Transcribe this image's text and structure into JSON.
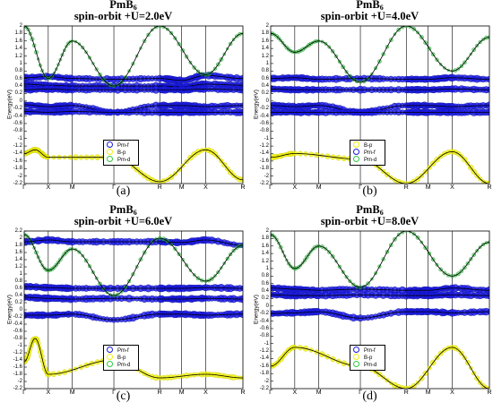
{
  "colors": {
    "f": "#1a1ae6",
    "p": "#f2f20a",
    "d": "#2ecc40",
    "line": "#000000",
    "axes": "#000000",
    "bg": "#ffffff"
  },
  "panels": [
    {
      "title": "PmB",
      "title_sub": "6",
      "subtitle": "spin-orbit +U=2.0eV",
      "caption": "(a)",
      "ylabel": "Energy(eV)",
      "yticks": [
        "2",
        "1.8",
        "1.6",
        "1.4",
        "1.2",
        "1",
        "0.8",
        "0.6",
        "0.4",
        "0.2",
        "0",
        "-0.2",
        "-0.4",
        "-0.6",
        "-0.8",
        "-1",
        "-1.2",
        "-1.4",
        "-1.6",
        "-1.8",
        "-2",
        "-2.2"
      ],
      "xticks": [
        "Γ",
        "X",
        "M",
        "Γ",
        "R",
        "M",
        "X",
        "R"
      ],
      "legend": [
        "Pm-f",
        "B-p",
        "Pm-d"
      ]
    },
    {
      "title": "PmB",
      "title_sub": "6",
      "subtitle": "spin-orbit +U=4.0eV",
      "caption": "(b)",
      "ylabel": "Energy(eV)",
      "yticks": [
        "2",
        "1.8",
        "1.6",
        "1.4",
        "1.2",
        "1",
        "0.8",
        "0.6",
        "0.4",
        "0.2",
        "0",
        "-0.2",
        "-0.4",
        "-0.6",
        "-0.8",
        "-1",
        "-1.2",
        "-1.4",
        "-1.6",
        "-1.8",
        "-2",
        "-2.2"
      ],
      "xticks": [
        "Γ",
        "X",
        "M",
        "Γ",
        "R",
        "M",
        "X",
        "R"
      ],
      "legend": [
        "B-p",
        "Pm-f",
        "Pm-d"
      ]
    },
    {
      "title": "PmB",
      "title_sub": "6",
      "subtitle": "spin-orbit +U=6.0eV",
      "caption": "(c)",
      "ylabel": "Energy(eV)",
      "yticks": [
        "2.2",
        "2",
        "1.8",
        "1.6",
        "1.4",
        "1.2",
        "1",
        "0.8",
        "0.6",
        "0.4",
        "0.2",
        "0",
        "-0.2",
        "-0.4",
        "-0.6",
        "-0.8",
        "-1",
        "-1.2",
        "-1.4",
        "-1.6",
        "-1.8",
        "-2",
        "-2.2"
      ],
      "xticks": [
        "Γ",
        "X",
        "M",
        "Γ",
        "R",
        "M",
        "X",
        "R"
      ],
      "legend": [
        "Pm-f",
        "B-p",
        "Pm-d"
      ]
    },
    {
      "title": "PmB",
      "title_sub": "6",
      "subtitle": "spin-orbit +U=8.0eV",
      "caption": "(d)",
      "ylabel": "Energy(eV)",
      "yticks": [
        "2",
        "1.8",
        "1.6",
        "1.4",
        "1.2",
        "1",
        "0.8",
        "0.6",
        "0.4",
        "0.2",
        "0",
        "-0.2",
        "-0.4",
        "-0.6",
        "-0.8",
        "-1",
        "-1.2",
        "-1.4",
        "-1.6",
        "-1.8",
        "-2",
        "-2.2"
      ],
      "xticks": [
        "Γ",
        "X",
        "M",
        "Γ",
        "R",
        "M",
        "X",
        "R"
      ],
      "legend": [
        "Pm-f",
        "B-p",
        "Pm-d"
      ]
    }
  ],
  "chart_data": [
    {
      "type": "line",
      "title": "PmB6 spin-orbit +U=2.0eV",
      "ylabel": "Energy(eV)",
      "ylim": [
        -2.2,
        2.0
      ],
      "kpath": [
        "Γ",
        "X",
        "M",
        "Γ",
        "R",
        "M",
        "X",
        "R"
      ],
      "kpos": [
        0,
        0.11,
        0.22,
        0.41,
        0.62,
        0.72,
        0.83,
        1.0
      ],
      "bands": [
        {
          "name": "Pm-f",
          "values": [
            [
              0,
              0.62
            ],
            [
              0.11,
              0.65
            ],
            [
              0.22,
              0.6
            ],
            [
              0.41,
              0.58
            ],
            [
              0.62,
              0.6
            ],
            [
              0.72,
              0.55
            ],
            [
              0.83,
              0.68
            ],
            [
              1.0,
              0.6
            ]
          ]
        },
        {
          "name": "Pm-f",
          "values": [
            [
              0,
              0.45
            ],
            [
              0.11,
              0.42
            ],
            [
              0.22,
              0.4
            ],
            [
              0.41,
              0.4
            ],
            [
              0.62,
              0.4
            ],
            [
              0.72,
              0.38
            ],
            [
              0.83,
              0.45
            ],
            [
              1.0,
              0.42
            ]
          ]
        },
        {
          "name": "Pm-f",
          "values": [
            [
              0,
              0.3
            ],
            [
              0.11,
              0.32
            ],
            [
              0.22,
              0.3
            ],
            [
              0.41,
              0.3
            ],
            [
              0.62,
              0.3
            ],
            [
              0.72,
              0.3
            ],
            [
              0.83,
              0.32
            ],
            [
              1.0,
              0.3
            ]
          ]
        },
        {
          "name": "Pm-f",
          "values": [
            [
              0,
              -0.1
            ],
            [
              0.11,
              -0.15
            ],
            [
              0.22,
              -0.12
            ],
            [
              0.41,
              -0.3
            ],
            [
              0.62,
              -0.12
            ],
            [
              0.72,
              -0.12
            ],
            [
              0.83,
              -0.15
            ],
            [
              1.0,
              -0.12
            ]
          ]
        },
        {
          "name": "Pm-f",
          "values": [
            [
              0,
              -0.28
            ],
            [
              0.11,
              -0.3
            ],
            [
              0.22,
              -0.28
            ],
            [
              0.41,
              -0.3
            ],
            [
              0.62,
              -0.3
            ],
            [
              0.72,
              -0.3
            ],
            [
              0.83,
              -0.3
            ],
            [
              1.0,
              -0.3
            ]
          ]
        },
        {
          "name": "B-p",
          "values": [
            [
              0,
              -1.4
            ],
            [
              0.05,
              -1.3
            ],
            [
              0.11,
              -1.5
            ],
            [
              0.41,
              -1.5
            ],
            [
              0.62,
              -2.15
            ],
            [
              0.83,
              -1.3
            ],
            [
              1.0,
              -2.1
            ]
          ]
        },
        {
          "name": "Pm-d",
          "values": [
            [
              0,
              2.0
            ],
            [
              0.11,
              0.6
            ],
            [
              0.22,
              1.6
            ],
            [
              0.41,
              0.4
            ],
            [
              0.62,
              2.0
            ],
            [
              0.83,
              0.7
            ],
            [
              1.0,
              1.8
            ]
          ]
        }
      ]
    },
    {
      "type": "line",
      "title": "PmB6 spin-orbit +U=4.0eV",
      "ylabel": "Energy(eV)",
      "ylim": [
        -2.2,
        2.0
      ],
      "kpath": [
        "Γ",
        "X",
        "M",
        "Γ",
        "R",
        "M",
        "X",
        "R"
      ],
      "kpos": [
        0,
        0.11,
        0.22,
        0.41,
        0.62,
        0.72,
        0.83,
        1.0
      ],
      "bands": [
        {
          "name": "Pm-f",
          "values": [
            [
              0,
              0.6
            ],
            [
              0.11,
              0.62
            ],
            [
              0.22,
              0.58
            ],
            [
              0.41,
              0.6
            ],
            [
              0.62,
              0.58
            ],
            [
              0.72,
              0.58
            ],
            [
              0.83,
              0.62
            ],
            [
              1.0,
              0.58
            ]
          ]
        },
        {
          "name": "Pm-f",
          "values": [
            [
              0,
              0.32
            ],
            [
              0.11,
              0.3
            ],
            [
              0.22,
              0.3
            ],
            [
              0.41,
              0.3
            ],
            [
              0.62,
              0.3
            ],
            [
              0.72,
              0.3
            ],
            [
              0.83,
              0.32
            ],
            [
              1.0,
              0.3
            ]
          ]
        },
        {
          "name": "Pm-f",
          "values": [
            [
              0,
              -0.12
            ],
            [
              0.11,
              -0.15
            ],
            [
              0.22,
              -0.12
            ],
            [
              0.41,
              -0.3
            ],
            [
              0.62,
              -0.12
            ],
            [
              0.72,
              -0.12
            ],
            [
              0.83,
              -0.15
            ],
            [
              1.0,
              -0.12
            ]
          ]
        },
        {
          "name": "Pm-f",
          "values": [
            [
              0,
              -0.3
            ],
            [
              0.11,
              -0.3
            ],
            [
              0.22,
              -0.3
            ],
            [
              0.41,
              -0.3
            ],
            [
              0.62,
              -0.3
            ],
            [
              0.72,
              -0.3
            ],
            [
              0.83,
              -0.3
            ],
            [
              1.0,
              -0.3
            ]
          ]
        },
        {
          "name": "B-p",
          "values": [
            [
              0,
              -1.5
            ],
            [
              0.11,
              -1.4
            ],
            [
              0.41,
              -1.55
            ],
            [
              0.62,
              -2.2
            ],
            [
              0.83,
              -1.35
            ],
            [
              1.0,
              -2.2
            ]
          ]
        },
        {
          "name": "Pm-d",
          "values": [
            [
              0,
              1.8
            ],
            [
              0.11,
              1.3
            ],
            [
              0.22,
              1.6
            ],
            [
              0.41,
              0.5
            ],
            [
              0.62,
              2.0
            ],
            [
              0.83,
              0.8
            ],
            [
              1.0,
              1.7
            ]
          ]
        }
      ]
    },
    {
      "type": "line",
      "title": "PmB6 spin-orbit +U=6.0eV",
      "ylabel": "Energy(eV)",
      "ylim": [
        -2.2,
        2.2
      ],
      "kpath": [
        "Γ",
        "X",
        "M",
        "Γ",
        "R",
        "M",
        "X",
        "R"
      ],
      "kpos": [
        0,
        0.11,
        0.22,
        0.41,
        0.62,
        0.72,
        0.83,
        1.0
      ],
      "bands": [
        {
          "name": "Pm-f",
          "values": [
            [
              0,
              1.9
            ],
            [
              0.11,
              1.95
            ],
            [
              0.22,
              1.9
            ],
            [
              0.41,
              1.9
            ],
            [
              0.62,
              1.9
            ],
            [
              0.72,
              1.88
            ],
            [
              0.83,
              1.95
            ],
            [
              1.0,
              1.8
            ]
          ]
        },
        {
          "name": "Pm-f",
          "values": [
            [
              0,
              0.65
            ],
            [
              0.11,
              0.62
            ],
            [
              0.22,
              0.6
            ],
            [
              0.41,
              0.6
            ],
            [
              0.62,
              0.6
            ],
            [
              0.72,
              0.6
            ],
            [
              0.83,
              0.62
            ],
            [
              1.0,
              0.6
            ]
          ]
        },
        {
          "name": "Pm-f",
          "values": [
            [
              0,
              0.35
            ],
            [
              0.11,
              0.32
            ],
            [
              0.22,
              0.3
            ],
            [
              0.41,
              0.32
            ],
            [
              0.62,
              0.3
            ],
            [
              0.72,
              0.3
            ],
            [
              0.83,
              0.32
            ],
            [
              1.0,
              0.3
            ]
          ]
        },
        {
          "name": "Pm-f",
          "values": [
            [
              0,
              -0.15
            ],
            [
              0.11,
              -0.15
            ],
            [
              0.22,
              -0.12
            ],
            [
              0.41,
              -0.28
            ],
            [
              0.62,
              -0.12
            ],
            [
              0.72,
              -0.12
            ],
            [
              0.83,
              -0.15
            ],
            [
              1.0,
              -0.12
            ]
          ]
        },
        {
          "name": "B-p",
          "values": [
            [
              0,
              -1.45
            ],
            [
              0.05,
              -0.8
            ],
            [
              0.11,
              -1.8
            ],
            [
              0.41,
              -1.4
            ],
            [
              0.62,
              -1.9
            ],
            [
              0.83,
              -1.8
            ],
            [
              1.0,
              -1.9
            ]
          ]
        },
        {
          "name": "Pm-d",
          "values": [
            [
              0,
              2.1
            ],
            [
              0.11,
              1.1
            ],
            [
              0.22,
              1.7
            ],
            [
              0.41,
              0.4
            ],
            [
              0.62,
              2.0
            ],
            [
              0.83,
              0.8
            ],
            [
              1.0,
              1.8
            ]
          ]
        }
      ]
    },
    {
      "type": "line",
      "title": "PmB6 spin-orbit +U=8.0eV",
      "ylabel": "Energy(eV)",
      "ylim": [
        -2.2,
        2.0
      ],
      "kpath": [
        "Γ",
        "X",
        "M",
        "Γ",
        "R",
        "M",
        "X",
        "R"
      ],
      "kpos": [
        0,
        0.11,
        0.22,
        0.41,
        0.62,
        0.72,
        0.83,
        1.0
      ],
      "bands": [
        {
          "name": "Pm-f",
          "values": [
            [
              0,
              0.48
            ],
            [
              0.11,
              0.45
            ],
            [
              0.22,
              0.42
            ],
            [
              0.41,
              0.45
            ],
            [
              0.62,
              0.42
            ],
            [
              0.72,
              0.42
            ],
            [
              0.83,
              0.48
            ],
            [
              1.0,
              0.42
            ]
          ]
        },
        {
          "name": "Pm-f",
          "values": [
            [
              0,
              0.3
            ],
            [
              0.11,
              0.28
            ],
            [
              0.22,
              0.28
            ],
            [
              0.41,
              0.3
            ],
            [
              0.62,
              0.28
            ],
            [
              0.72,
              0.28
            ],
            [
              0.83,
              0.3
            ],
            [
              1.0,
              0.28
            ]
          ]
        },
        {
          "name": "Pm-f",
          "values": [
            [
              0,
              -0.2
            ],
            [
              0.11,
              -0.18
            ],
            [
              0.22,
              -0.15
            ],
            [
              0.41,
              -0.32
            ],
            [
              0.62,
              -0.15
            ],
            [
              0.72,
              -0.15
            ],
            [
              0.83,
              -0.18
            ],
            [
              1.0,
              -0.15
            ]
          ]
        },
        {
          "name": "B-p",
          "values": [
            [
              0,
              -1.6
            ],
            [
              0.11,
              -1.1
            ],
            [
              0.41,
              -1.6
            ],
            [
              0.62,
              -2.2
            ],
            [
              0.83,
              -1.1
            ],
            [
              1.0,
              -2.2
            ]
          ]
        },
        {
          "name": "Pm-d",
          "values": [
            [
              0,
              1.9
            ],
            [
              0.11,
              1.0
            ],
            [
              0.22,
              1.6
            ],
            [
              0.41,
              0.5
            ],
            [
              0.62,
              2.0
            ],
            [
              0.83,
              0.8
            ],
            [
              1.0,
              1.7
            ]
          ]
        }
      ]
    }
  ]
}
